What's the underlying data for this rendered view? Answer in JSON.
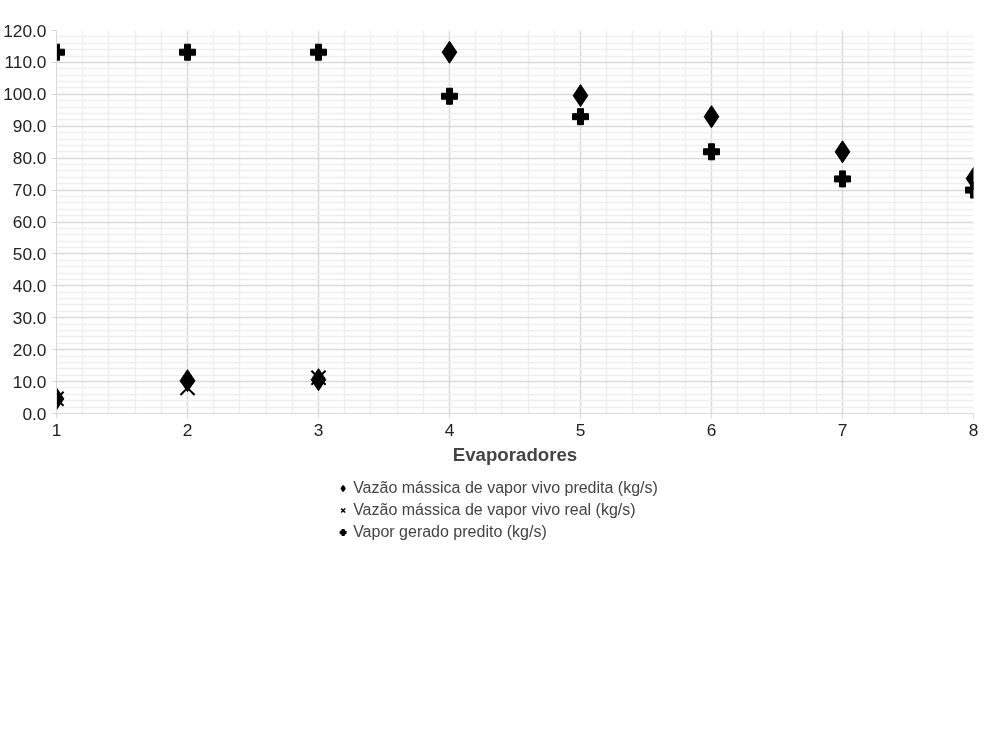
{
  "chart_data": {
    "type": "scatter",
    "xlabel": "Evaporadores",
    "x": [
      1,
      2,
      3,
      4,
      5,
      6,
      7,
      8
    ],
    "series": [
      {
        "name": "Vazão mássica de vapor vivo predita (kg/s)",
        "color": "#000000",
        "marker": "diamond",
        "values": [
          4.6,
          10.3,
          10.6,
          113.2,
          99.6,
          93.0,
          82.0,
          73.6
        ]
      },
      {
        "name": "Vazão mássica de vapor vivo real (kg/s)",
        "color": "#000000",
        "marker": "x",
        "values": [
          4.6,
          8.0,
          11.2,
          null,
          null,
          null,
          null,
          null
        ]
      },
      {
        "name": "Vapor gerado predito (kg/s)",
        "color": "#000000",
        "marker": "cross",
        "values": [
          113.2,
          113.2,
          113.2,
          99.4,
          93.0,
          82.0,
          73.5,
          70.0
        ]
      }
    ],
    "xlim": [
      1,
      8
    ],
    "xticks": [
      1,
      2,
      3,
      4,
      5,
      6,
      7,
      8
    ],
    "ylim": [
      0,
      120
    ],
    "yticks": [
      {
        "value": 0,
        "label": "0.0"
      },
      {
        "value": 10,
        "label": "10.0"
      },
      {
        "value": 20,
        "label": "20.0"
      },
      {
        "value": 30,
        "label": "30.0"
      },
      {
        "value": 40,
        "label": "40.0"
      },
      {
        "value": 50,
        "label": "50.0"
      },
      {
        "value": 60,
        "label": "60.0"
      },
      {
        "value": 70,
        "label": "70.0"
      },
      {
        "value": 80,
        "label": "80.0"
      },
      {
        "value": 90,
        "label": "90.0"
      },
      {
        "value": 100,
        "label": "100.0"
      },
      {
        "value": 110,
        "label": "110.0"
      },
      {
        "value": 120,
        "label": "120.0"
      }
    ],
    "grid": true,
    "legend": "bottom"
  }
}
